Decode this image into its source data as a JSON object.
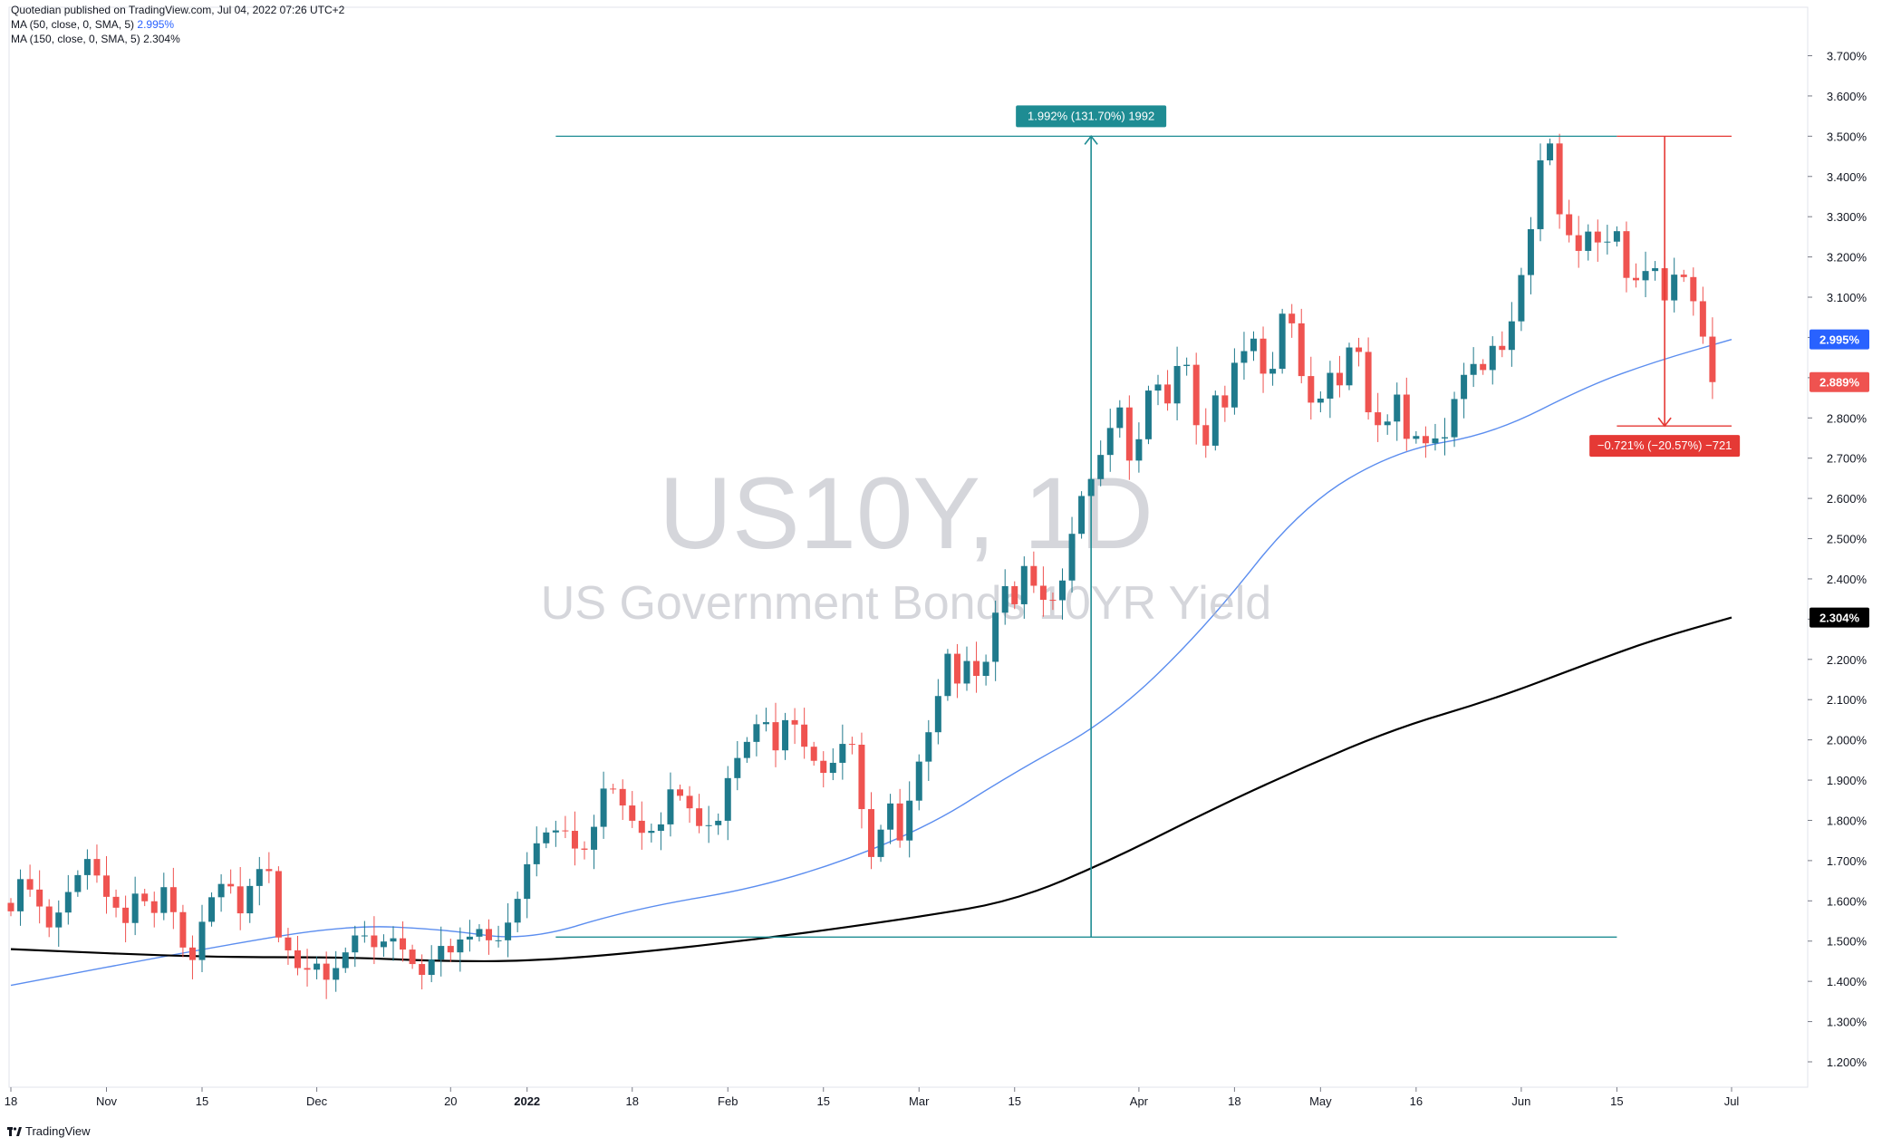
{
  "header": {
    "published": "Quotedian published on TradingView.com, Jul 04, 2022 07:26 UTC+2",
    "ma50_label": "MA (50, close, 0, SMA, 5)",
    "ma50_value": "2.995%",
    "ma150_label": "MA (150, close, 0, SMA, 5)",
    "ma150_value": "2.304%"
  },
  "watermark": {
    "symbol": "US10Y, 1D",
    "name": "US Government Bonds 10YR Yield"
  },
  "branding": {
    "label": "TradingView"
  },
  "colors": {
    "up": "#26a69a",
    "upBody": "#1f7a8c",
    "down": "#ef5350",
    "ma50": "#5b8def",
    "ma150": "#000000",
    "measureUp": "#1e8c93",
    "measureDown": "#e53935",
    "grid": "#e0e3eb",
    "axis": "#131722"
  },
  "chart_data": {
    "type": "candlestick",
    "title": "US10Y, 1D",
    "subtitle": "US Government Bonds 10YR Yield",
    "ylim": [
      1.16,
      3.74
    ],
    "y_ticks": [
      "3.700%",
      "3.600%",
      "3.500%",
      "3.400%",
      "3.300%",
      "3.200%",
      "3.100%",
      "3.000%",
      "2.900%",
      "2.800%",
      "2.700%",
      "2.600%",
      "2.500%",
      "2.400%",
      "2.300%",
      "2.200%",
      "2.100%",
      "2.000%",
      "1.900%",
      "1.800%",
      "1.700%",
      "1.600%",
      "1.500%",
      "1.400%",
      "1.300%",
      "1.200%"
    ],
    "y_tick_values": [
      3.7,
      3.6,
      3.5,
      3.4,
      3.3,
      3.2,
      3.1,
      3.0,
      2.9,
      2.8,
      2.7,
      2.6,
      2.5,
      2.4,
      2.3,
      2.2,
      2.1,
      2.0,
      1.9,
      1.8,
      1.7,
      1.6,
      1.5,
      1.4,
      1.3,
      1.2
    ],
    "x_ticks": [
      {
        "label": "18",
        "bar": 0
      },
      {
        "label": "Nov",
        "bar": 10
      },
      {
        "label": "15",
        "bar": 20
      },
      {
        "label": "Dec",
        "bar": 32
      },
      {
        "label": "20",
        "bar": 46
      },
      {
        "label": "2022",
        "bar": 54,
        "bold": true
      },
      {
        "label": "18",
        "bar": 65
      },
      {
        "label": "Feb",
        "bar": 75
      },
      {
        "label": "15",
        "bar": 85
      },
      {
        "label": "Mar",
        "bar": 95
      },
      {
        "label": "15",
        "bar": 105
      },
      {
        "label": "Apr",
        "bar": 118
      },
      {
        "label": "18",
        "bar": 128
      },
      {
        "label": "May",
        "bar": 137
      },
      {
        "label": "16",
        "bar": 147
      },
      {
        "label": "Jun",
        "bar": 158
      },
      {
        "label": "15",
        "bar": 168
      },
      {
        "label": "Jul",
        "bar": 180
      }
    ],
    "closes": [
      1.574,
      1.654,
      1.628,
      1.586,
      1.534,
      1.571,
      1.622,
      1.664,
      1.704,
      1.663,
      1.61,
      1.583,
      1.545,
      1.618,
      1.599,
      1.57,
      1.634,
      1.572,
      1.484,
      1.453,
      1.548,
      1.609,
      1.642,
      1.636,
      1.569,
      1.637,
      1.679,
      1.674,
      1.509,
      1.477,
      1.433,
      1.429,
      1.444,
      1.404,
      1.433,
      1.472,
      1.514,
      1.514,
      1.485,
      1.499,
      1.507,
      1.479,
      1.443,
      1.416,
      1.454,
      1.488,
      1.472,
      1.504,
      1.511,
      1.53,
      1.502,
      1.502,
      1.546,
      1.605,
      1.691,
      1.743,
      1.77,
      1.775,
      1.774,
      1.73,
      1.727,
      1.784,
      1.879,
      1.878,
      1.837,
      1.799,
      1.769,
      1.774,
      1.79,
      1.877,
      1.861,
      1.83,
      1.786,
      1.788,
      1.799,
      1.905,
      1.955,
      1.995,
      2.039,
      2.044,
      1.974,
      2.049,
      2.038,
      1.983,
      1.948,
      1.918,
      1.943,
      1.99,
      1.988,
      1.828,
      1.709,
      1.777,
      1.842,
      1.75,
      1.849,
      1.946,
      2.019,
      2.109,
      2.214,
      2.14,
      2.196,
      2.159,
      2.194,
      2.316,
      2.382,
      2.337,
      2.432,
      2.383,
      2.348,
      2.347,
      2.396,
      2.512,
      2.606,
      2.648,
      2.708,
      2.775,
      2.826,
      2.694,
      2.747,
      2.868,
      2.883,
      2.836,
      2.929,
      2.932,
      2.782,
      2.731,
      2.856,
      2.826,
      2.937,
      2.966,
      2.997,
      2.91,
      2.922,
      3.059,
      3.035,
      2.904,
      2.838,
      2.848,
      2.912,
      2.881,
      2.975,
      2.964,
      2.814,
      2.782,
      2.791,
      2.858,
      2.748,
      2.755,
      2.737,
      2.749,
      2.752,
      2.847,
      2.907,
      2.934,
      2.919,
      2.979,
      2.969,
      3.04,
      3.155,
      3.269,
      3.44,
      3.482,
      3.306,
      3.254,
      3.215,
      3.263,
      3.236,
      3.238,
      3.264,
      3.148,
      3.142,
      3.165,
      3.172,
      3.092,
      3.156,
      3.15,
      3.09,
      3.002,
      2.889
    ],
    "opens": [
      1.595,
      1.574,
      1.654,
      1.628,
      1.586,
      1.534,
      1.571,
      1.622,
      1.664,
      1.704,
      1.663,
      1.61,
      1.583,
      1.545,
      1.618,
      1.599,
      1.57,
      1.634,
      1.572,
      1.484,
      1.453,
      1.548,
      1.609,
      1.642,
      1.636,
      1.569,
      1.637,
      1.679,
      1.674,
      1.509,
      1.477,
      1.433,
      1.429,
      1.444,
      1.404,
      1.433,
      1.472,
      1.514,
      1.514,
      1.485,
      1.499,
      1.507,
      1.479,
      1.443,
      1.416,
      1.454,
      1.488,
      1.472,
      1.504,
      1.511,
      1.53,
      1.502,
      1.502,
      1.546,
      1.605,
      1.691,
      1.743,
      1.77,
      1.775,
      1.774,
      1.73,
      1.727,
      1.784,
      1.879,
      1.878,
      1.837,
      1.799,
      1.769,
      1.774,
      1.79,
      1.877,
      1.861,
      1.83,
      1.786,
      1.788,
      1.799,
      1.905,
      1.955,
      1.995,
      2.039,
      2.044,
      1.974,
      2.049,
      2.038,
      1.983,
      1.948,
      1.918,
      1.943,
      1.99,
      1.988,
      1.828,
      1.709,
      1.777,
      1.842,
      1.75,
      1.849,
      1.946,
      2.019,
      2.109,
      2.214,
      2.14,
      2.196,
      2.159,
      2.194,
      2.316,
      2.382,
      2.337,
      2.432,
      2.383,
      2.348,
      2.347,
      2.396,
      2.512,
      2.606,
      2.648,
      2.708,
      2.775,
      2.826,
      2.694,
      2.747,
      2.868,
      2.883,
      2.836,
      2.929,
      2.932,
      2.782,
      2.731,
      2.856,
      2.826,
      2.937,
      2.966,
      2.997,
      2.91,
      2.922,
      3.059,
      3.035,
      2.904,
      2.838,
      2.848,
      2.912,
      2.881,
      2.975,
      2.964,
      2.814,
      2.782,
      2.791,
      2.858,
      2.748,
      2.755,
      2.737,
      2.749,
      2.752,
      2.847,
      2.907,
      2.934,
      2.919,
      2.979,
      2.969,
      3.04,
      3.155,
      3.269,
      3.44,
      3.482,
      3.306,
      3.254,
      3.215,
      3.263,
      3.236,
      3.238,
      3.264,
      3.148,
      3.142,
      3.165,
      3.172,
      3.092,
      3.156,
      3.15,
      3.09,
      3.002
    ],
    "series": [
      {
        "name": "MA (50, close, 0, SMA, 5)",
        "color": "#5b8def",
        "points": [
          [
            0,
            1.39
          ],
          [
            20,
            1.48
          ],
          [
            35,
            1.54
          ],
          [
            45,
            1.53
          ],
          [
            54,
            1.5
          ],
          [
            65,
            1.58
          ],
          [
            80,
            1.64
          ],
          [
            95,
            1.77
          ],
          [
            105,
            1.92
          ],
          [
            115,
            2.05
          ],
          [
            125,
            2.28
          ],
          [
            135,
            2.58
          ],
          [
            145,
            2.72
          ],
          [
            155,
            2.76
          ],
          [
            165,
            2.88
          ],
          [
            172,
            2.94
          ],
          [
            180,
            2.995
          ]
        ]
      },
      {
        "name": "MA (150, close, 0, SMA, 5)",
        "color": "#000000",
        "points": [
          [
            0,
            1.48
          ],
          [
            20,
            1.46
          ],
          [
            35,
            1.46
          ],
          [
            45,
            1.45
          ],
          [
            54,
            1.45
          ],
          [
            65,
            1.47
          ],
          [
            80,
            1.51
          ],
          [
            95,
            1.56
          ],
          [
            105,
            1.6
          ],
          [
            115,
            1.7
          ],
          [
            125,
            1.82
          ],
          [
            135,
            1.93
          ],
          [
            145,
            2.03
          ],
          [
            155,
            2.1
          ],
          [
            165,
            2.19
          ],
          [
            172,
            2.25
          ],
          [
            180,
            2.304
          ]
        ]
      }
    ],
    "price_labels": [
      {
        "value": 2.995,
        "text": "2.995%",
        "bg": "#2962ff"
      },
      {
        "value": 2.889,
        "text": "2.889%",
        "bg": "#ef5350"
      },
      {
        "value": 2.304,
        "text": "2.304%",
        "bg": "#000000"
      }
    ],
    "measures": [
      {
        "label": "1.992% (131.70%) 1992",
        "from": 1.51,
        "to": 3.5,
        "bar": 113,
        "bar_start": 57,
        "bar_end": 168,
        "color": "#1e8c93"
      },
      {
        "label": "−0.721% (−20.57%) −721",
        "from": 3.5,
        "to": 2.78,
        "bar": 173,
        "bar_start": 168,
        "bar_end": 180,
        "color": "#e53935"
      }
    ]
  }
}
